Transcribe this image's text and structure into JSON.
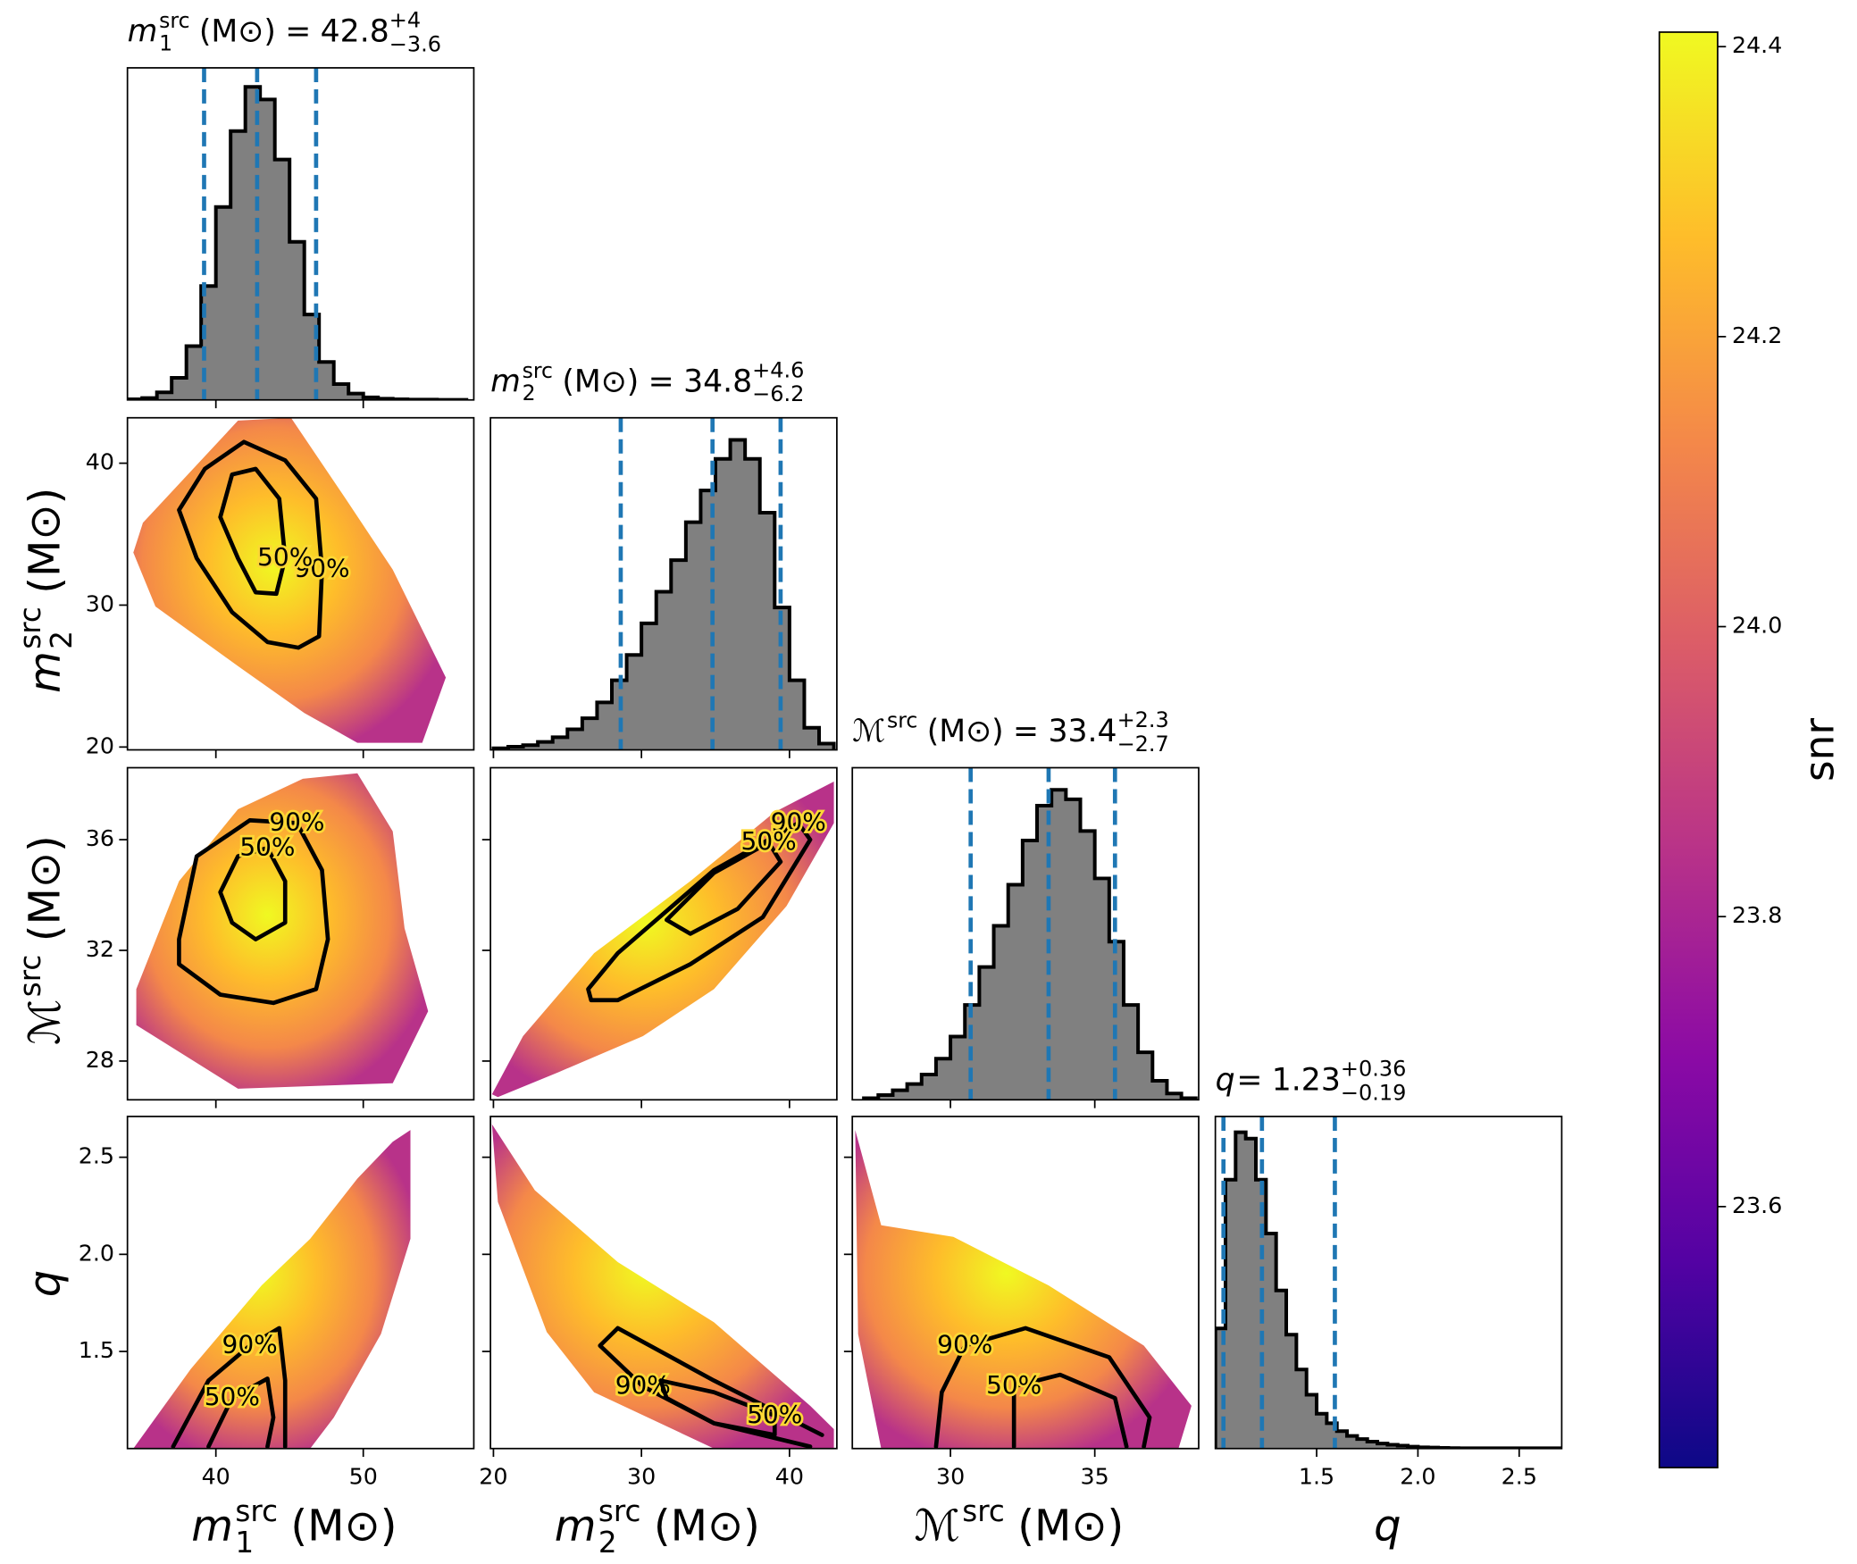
{
  "chart_data": {
    "type": "corner",
    "title_separator": "=",
    "parameters": [
      {
        "symbol": "m",
        "sub": "1",
        "sup": "src",
        "unit": "(M⊙)",
        "lim": [
          34,
          57.5
        ],
        "xticks": [
          40,
          50
        ],
        "yticks": [],
        "quantiles": [
          39.2,
          42.8,
          46.8
        ],
        "title": {
          "value": 42.8,
          "upper": "+4",
          "lower": "−3.6"
        },
        "hist": {
          "bins": [
            34,
            35,
            36,
            37,
            38,
            39,
            40,
            41,
            42,
            43,
            44,
            45,
            46,
            47,
            48,
            49,
            50,
            51,
            52,
            53,
            54,
            55,
            56,
            57
          ],
          "counts": [
            0.2,
            0.6,
            2.4,
            7,
            17,
            36,
            61,
            85,
            99,
            95,
            76,
            50,
            27,
            12,
            5,
            2,
            0.8,
            0.4,
            0.2,
            0.1,
            0.1,
            0.05,
            0.05
          ],
          "ylim": [
            0,
            105
          ]
        }
      },
      {
        "symbol": "m",
        "sub": "2",
        "sup": "src",
        "unit": "(M⊙)",
        "lim": [
          19.8,
          43.2
        ],
        "xticks": [
          20,
          30,
          40
        ],
        "yticks": [
          20,
          30,
          40
        ],
        "quantiles": [
          28.6,
          34.8,
          39.4
        ],
        "title": {
          "value": 34.8,
          "upper": "+4.6",
          "lower": "−6.2"
        },
        "hist": {
          "bins": [
            20,
            21,
            22,
            23,
            24,
            25,
            26,
            27,
            28,
            29,
            30,
            31,
            32,
            33,
            34,
            35,
            36,
            37,
            38,
            39,
            40,
            41,
            42,
            43
          ],
          "counts": [
            0.5,
            1,
            1.5,
            2.5,
            4,
            6.5,
            10,
            15,
            22,
            30,
            40,
            50,
            60,
            72,
            82,
            92,
            98,
            92,
            75,
            45,
            22,
            7,
            2
          ],
          "ylim": [
            0,
            105
          ]
        }
      },
      {
        "symbol": "ℳ",
        "sup": "src",
        "unit": "(M⊙)",
        "lim": [
          26.6,
          38.6
        ],
        "xticks": [
          30,
          35
        ],
        "yticks": [
          28,
          32,
          36
        ],
        "quantiles": [
          30.7,
          33.4,
          35.7
        ],
        "title": {
          "value": 33.4,
          "upper": "+2.3",
          "lower": "−2.7"
        },
        "hist": {
          "bins": [
            27,
            27.5,
            28,
            28.5,
            29,
            29.5,
            30,
            30.5,
            31,
            31.5,
            32,
            32.5,
            33,
            33.5,
            34,
            34.5,
            35,
            35.5,
            36,
            36.5,
            37,
            37.5,
            38,
            38.5
          ],
          "counts": [
            0.5,
            1.5,
            3,
            5,
            8,
            13,
            20,
            30,
            42,
            55,
            68,
            82,
            93,
            98,
            95,
            85,
            70,
            50,
            30,
            15,
            6,
            2,
            0.5
          ],
          "ylim": [
            0,
            105
          ]
        }
      },
      {
        "symbol": "q",
        "lim": [
          1.0,
          2.71
        ],
        "xticks": [
          1.5,
          {
            "value": 2,
            "label": "2.0"
          },
          2.5
        ],
        "yticks": [
          1.5,
          {
            "value": 2,
            "label": "2.0"
          },
          2.5
        ],
        "quantiles": [
          1.04,
          1.23,
          1.59
        ],
        "title": {
          "value": 1.23,
          "upper": "+0.36",
          "lower": "−0.19"
        },
        "hist": {
          "bins": [
            1.0,
            1.05,
            1.1,
            1.15,
            1.2,
            1.25,
            1.3,
            1.35,
            1.4,
            1.45,
            1.5,
            1.55,
            1.6,
            1.65,
            1.7,
            1.75,
            1.8,
            1.85,
            1.9,
            1.95,
            2.0,
            2.05,
            2.1,
            2.15,
            2.2,
            2.25,
            2.3,
            2.35,
            2.4,
            2.45,
            2.5,
            2.55,
            2.6,
            2.65,
            2.7
          ],
          "counts": [
            38,
            85,
            100,
            98,
            85,
            68,
            50,
            36,
            25,
            17,
            11,
            8,
            5.5,
            4,
            3,
            2.2,
            1.6,
            1.2,
            0.9,
            0.6,
            0.4,
            0.3,
            0.2,
            0.15,
            0.1,
            0.1,
            0.1,
            0.1,
            0.1,
            0.1,
            0.1,
            0.1,
            0.1,
            0.1
          ],
          "ylim": [
            0,
            105
          ]
        }
      }
    ],
    "pairs": [
      {
        "x": 0,
        "y": 1,
        "cloud": {
          "x": [
            35.05,
            41.5,
            45.1,
            48.8,
            52.0,
            55.6,
            54.0,
            49.6,
            46.0,
            41.5,
            35.9,
            34.4
          ],
          "y": [
            35.8,
            43.0,
            43.2,
            37.5,
            32.5,
            24.9,
            20.3,
            20.3,
            22.4,
            25.7,
            29.9,
            33.7
          ]
        },
        "contours": [
          {
            "label": "90%",
            "x": [
              39.25,
              41.9,
              44.7,
              46.8,
              47.2,
              47.0,
              45.6,
              43.5,
              41.1,
              38.7,
              37.5,
              39.25
            ],
            "y": [
              39.6,
              41.5,
              40.2,
              37.5,
              32.5,
              27.8,
              27.0,
              27.4,
              29.5,
              33.3,
              36.7,
              39.6
            ]
          },
          {
            "label": "50%",
            "x": [
              41.1,
              42.7,
              44.3,
              44.7,
              44.1,
              42.7,
              41.5,
              40.3,
              41.1
            ],
            "y": [
              39.2,
              39.6,
              37.5,
              33.3,
              30.8,
              30.9,
              33.3,
              36.2,
              39.2
            ]
          }
        ]
      },
      {
        "x": 0,
        "y": 2,
        "cloud": {
          "x": [
            34.6,
            37.5,
            41.5,
            45.9,
            49.6,
            52.0,
            52.8,
            54.4,
            52.0,
            41.5,
            34.6
          ],
          "y": [
            30.6,
            34.5,
            37.1,
            38.2,
            38.4,
            36.3,
            32.8,
            29.8,
            27.2,
            27.0,
            29.3
          ]
        },
        "contours": [
          {
            "label": "90%",
            "x": [
              37.5,
              38.7,
              42.3,
              45.5,
              47.2,
              47.6,
              46.8,
              43.9,
              40.3,
              37.5,
              37.5
            ],
            "y": [
              32.4,
              35.4,
              36.7,
              36.6,
              34.9,
              32.4,
              30.6,
              30.1,
              30.4,
              31.5,
              32.4
            ]
          },
          {
            "label": "50%",
            "x": [
              40.3,
              41.5,
              43.5,
              44.7,
              44.7,
              42.7,
              41.1,
              40.3
            ],
            "y": [
              34.1,
              35.4,
              35.7,
              34.5,
              33.0,
              32.4,
              33.0,
              34.1
            ]
          }
        ]
      },
      {
        "x": 1,
        "y": 2,
        "cloud": {
          "x": [
            19.9,
            22.0,
            26.8,
            33.3,
            39.0,
            43.0,
            43.0,
            39.8,
            34.9,
            30.1,
            24.4,
            20.3
          ],
          "y": [
            26.8,
            28.9,
            31.9,
            34.5,
            37.0,
            38.1,
            36.6,
            33.6,
            30.6,
            28.9,
            27.6,
            26.7
          ]
        },
        "contours": [
          {
            "label": "90%",
            "x": [
              26.4,
              28.4,
              34.9,
              40.6,
              41.4,
              38.2,
              33.3,
              28.4,
              26.6,
              26.4
            ],
            "y": [
              30.6,
              31.9,
              34.9,
              36.6,
              36.0,
              33.2,
              31.5,
              30.2,
              30.2,
              30.6
            ]
          },
          {
            "label": "50%",
            "x": [
              31.7,
              34.9,
              38.6,
              39.4,
              36.5,
              33.3,
              31.7
            ],
            "y": [
              33.1,
              34.8,
              35.9,
              35.2,
              33.5,
              32.6,
              33.1
            ]
          }
        ]
      },
      {
        "x": 0,
        "y": 3,
        "cloud": {
          "x": [
            34.4,
            38.3,
            43.1,
            46.4,
            49.6,
            52.0,
            53.2,
            53.2,
            51.2,
            48.0,
            46.4
          ],
          "y": [
            1.0,
            1.41,
            1.84,
            2.08,
            2.39,
            2.58,
            2.64,
            2.08,
            1.59,
            1.16,
            1.0
          ]
        },
        "contours": [
          {
            "label": "90%",
            "x": [
              37.1,
              39.5,
              42.3,
              44.3,
              44.7,
              44.7
            ],
            "y": [
              1.01,
              1.35,
              1.53,
              1.62,
              1.35,
              1.01
            ]
          },
          {
            "label": "50%",
            "x": [
              39.5,
              41.1,
              43.5,
              43.9,
              43.5
            ],
            "y": [
              1.01,
              1.26,
              1.36,
              1.16,
              1.01
            ]
          }
        ]
      },
      {
        "x": 1,
        "y": 3,
        "cloud": {
          "x": [
            19.9,
            22.8,
            28.4,
            34.9,
            41.4,
            43.0,
            43.0,
            34.9,
            26.8,
            23.6,
            20.3
          ],
          "y": [
            2.67,
            2.33,
            1.96,
            1.65,
            1.22,
            1.1,
            1.0,
            1.0,
            1.29,
            1.6,
            2.27
          ]
        },
        "contours": [
          {
            "label": "90%",
            "x": [
              41.4,
              34.9,
              30.1,
              27.2,
              28.4,
              34.9,
              42.2
            ],
            "y": [
              1.01,
              1.13,
              1.32,
              1.53,
              1.62,
              1.35,
              1.07
            ]
          },
          {
            "label": "50%",
            "x": [
              31.3,
              34.9,
              39.0,
              39.0,
              34.9,
              31.7,
              31.3
            ],
            "y": [
              1.35,
              1.29,
              1.17,
              1.07,
              1.13,
              1.26,
              1.35
            ]
          }
        ]
      },
      {
        "x": 2,
        "y": 3,
        "cloud": {
          "x": [
            26.7,
            27.6,
            30.1,
            33.4,
            36.7,
            38.35,
            37.9,
            27.6,
            26.8
          ],
          "y": [
            2.64,
            2.15,
            2.09,
            1.84,
            1.53,
            1.22,
            1.0,
            1.0,
            1.59
          ]
        },
        "contours": [
          {
            "label": "90%",
            "x": [
              29.5,
              29.7,
              30.5,
              32.6,
              35.5,
              36.9,
              36.7
            ],
            "y": [
              1.01,
              1.29,
              1.53,
              1.62,
              1.47,
              1.16,
              1.01
            ]
          },
          {
            "label": "50%",
            "x": [
              32.2,
              32.2,
              33.8,
              35.7,
              36.1
            ],
            "y": [
              1.01,
              1.32,
              1.38,
              1.26,
              1.01
            ]
          }
        ]
      }
    ],
    "colorbar": {
      "label": "snr",
      "colormap": "plasma",
      "lim": [
        23.42,
        24.41
      ],
      "ticks": [
        23.6,
        23.8,
        {
          "value": 24,
          "label": "24.0"
        },
        24.2,
        24.4
      ]
    }
  }
}
